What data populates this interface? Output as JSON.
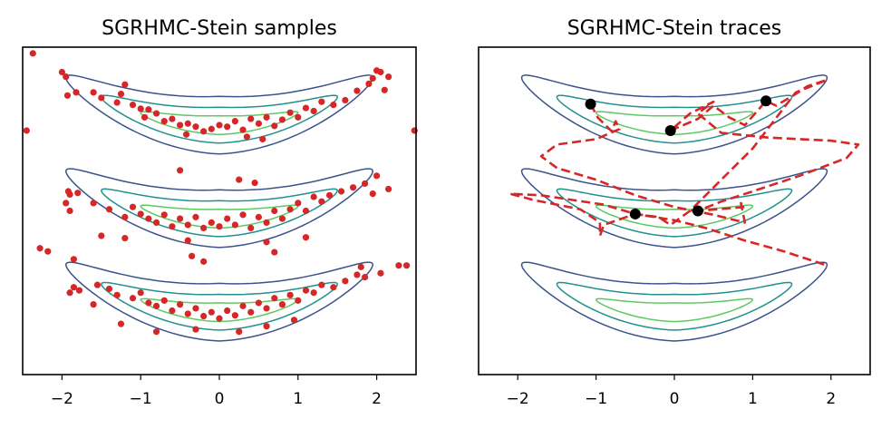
{
  "chart_data": [
    {
      "type": "scatter",
      "title": "SGRHMC-Stein samples",
      "xlabel": "",
      "ylabel": "",
      "xlim": [
        -2.5,
        2.5
      ],
      "ylim": [
        -2.0,
        2.2
      ],
      "xticks": [
        "−2",
        "−1",
        "0",
        "1",
        "2"
      ],
      "xtick_values": [
        -2,
        -1,
        0,
        1,
        2
      ],
      "grid": false,
      "contours": {
        "modes_center_y": [
          1.2,
          0.0,
          -1.2
        ],
        "curvature": 0.16,
        "levels": [
          {
            "name": "outer",
            "color": "#3b528b",
            "half_length": 1.95,
            "half_width": 0.37
          },
          {
            "name": "middle",
            "color": "#21918c",
            "half_length": 1.5,
            "half_width": 0.23
          },
          {
            "name": "inner",
            "color": "#5ec962",
            "half_length": 1.0,
            "half_width": 0.12
          }
        ]
      },
      "series": [
        {
          "name": "samples",
          "color": "#d62728",
          "points": [
            [
              -2.37,
              2.12
            ],
            [
              -2.0,
              1.88
            ],
            [
              -1.95,
              1.82
            ],
            [
              -1.93,
              1.58
            ],
            [
              -1.82,
              1.62
            ],
            [
              -1.6,
              1.62
            ],
            [
              -1.5,
              1.55
            ],
            [
              -1.3,
              1.49
            ],
            [
              -1.25,
              1.6
            ],
            [
              -1.2,
              1.72
            ],
            [
              -1.1,
              1.46
            ],
            [
              -1.0,
              1.41
            ],
            [
              -0.95,
              1.3
            ],
            [
              -0.9,
              1.4
            ],
            [
              -0.8,
              1.35
            ],
            [
              -0.7,
              1.25
            ],
            [
              -0.6,
              1.28
            ],
            [
              -0.5,
              1.2
            ],
            [
              -0.4,
              1.22
            ],
            [
              -0.3,
              1.18
            ],
            [
              -0.2,
              1.12
            ],
            [
              -0.1,
              1.15
            ],
            [
              0.0,
              1.2
            ],
            [
              0.1,
              1.18
            ],
            [
              0.2,
              1.25
            ],
            [
              0.3,
              1.14
            ],
            [
              0.4,
              1.28
            ],
            [
              0.5,
              1.22
            ],
            [
              0.6,
              1.3
            ],
            [
              0.7,
              1.19
            ],
            [
              0.8,
              1.27
            ],
            [
              0.9,
              1.36
            ],
            [
              1.0,
              1.3
            ],
            [
              1.1,
              1.42
            ],
            [
              1.2,
              1.38
            ],
            [
              1.3,
              1.5
            ],
            [
              1.45,
              1.46
            ],
            [
              1.6,
              1.52
            ],
            [
              1.75,
              1.64
            ],
            [
              1.9,
              1.73
            ],
            [
              1.95,
              1.8
            ],
            [
              2.0,
              1.9
            ],
            [
              2.05,
              1.88
            ],
            [
              2.15,
              1.82
            ],
            [
              2.1,
              1.65
            ],
            [
              -0.42,
              1.08
            ],
            [
              0.35,
              1.05
            ],
            [
              0.55,
              1.02
            ],
            [
              -2.45,
              1.13
            ],
            [
              2.48,
              1.13
            ],
            [
              -0.5,
              0.62
            ],
            [
              0.25,
              0.5
            ],
            [
              0.45,
              0.46
            ],
            [
              -1.92,
              0.35
            ],
            [
              -1.9,
              0.31
            ],
            [
              -1.8,
              0.33
            ],
            [
              -1.95,
              0.2
            ],
            [
              -1.9,
              0.1
            ],
            [
              -1.6,
              0.2
            ],
            [
              -1.4,
              0.12
            ],
            [
              -1.2,
              0.02
            ],
            [
              -1.1,
              0.15
            ],
            [
              -1.0,
              0.06
            ],
            [
              -0.9,
              0.0
            ],
            [
              -0.8,
              -0.05
            ],
            [
              -0.7,
              0.05
            ],
            [
              -0.6,
              -0.1
            ],
            [
              -0.5,
              0.0
            ],
            [
              -0.4,
              -0.08
            ],
            [
              -0.3,
              0.02
            ],
            [
              -0.2,
              -0.12
            ],
            [
              -0.1,
              -0.05
            ],
            [
              0.0,
              -0.1
            ],
            [
              0.1,
              0.0
            ],
            [
              0.2,
              -0.08
            ],
            [
              0.3,
              0.05
            ],
            [
              0.4,
              -0.12
            ],
            [
              0.5,
              0.02
            ],
            [
              0.6,
              -0.05
            ],
            [
              0.7,
              0.1
            ],
            [
              0.8,
              0.0
            ],
            [
              0.9,
              0.12
            ],
            [
              1.0,
              0.2
            ],
            [
              1.1,
              0.1
            ],
            [
              1.2,
              0.28
            ],
            [
              1.3,
              0.22
            ],
            [
              1.4,
              0.3
            ],
            [
              1.55,
              0.35
            ],
            [
              1.7,
              0.4
            ],
            [
              1.85,
              0.45
            ],
            [
              2.0,
              0.55
            ],
            [
              1.95,
              0.32
            ],
            [
              2.15,
              0.38
            ],
            [
              -1.5,
              -0.22
            ],
            [
              -1.2,
              -0.25
            ],
            [
              -0.4,
              -0.28
            ],
            [
              0.6,
              -0.3
            ],
            [
              1.1,
              -0.24
            ],
            [
              -2.28,
              -0.38
            ],
            [
              -2.18,
              -0.42
            ],
            [
              -1.85,
              -0.52
            ],
            [
              -0.2,
              -0.55
            ],
            [
              -0.35,
              -0.48
            ],
            [
              0.7,
              -0.43
            ],
            [
              2.28,
              -0.6
            ],
            [
              2.38,
              -0.6
            ],
            [
              -1.85,
              -0.88
            ],
            [
              -1.78,
              -0.92
            ],
            [
              -1.9,
              -0.95
            ],
            [
              -1.55,
              -0.85
            ],
            [
              -1.4,
              -0.9
            ],
            [
              -1.3,
              -0.98
            ],
            [
              -1.1,
              -1.02
            ],
            [
              -1.0,
              -0.95
            ],
            [
              -0.9,
              -1.08
            ],
            [
              -0.8,
              -1.12
            ],
            [
              -0.7,
              -1.05
            ],
            [
              -0.6,
              -1.18
            ],
            [
              -0.5,
              -1.1
            ],
            [
              -0.4,
              -1.22
            ],
            [
              -0.3,
              -1.15
            ],
            [
              -0.2,
              -1.25
            ],
            [
              -0.1,
              -1.2
            ],
            [
              0.0,
              -1.28
            ],
            [
              0.1,
              -1.18
            ],
            [
              0.2,
              -1.24
            ],
            [
              0.3,
              -1.12
            ],
            [
              0.4,
              -1.2
            ],
            [
              0.5,
              -1.08
            ],
            [
              0.6,
              -1.15
            ],
            [
              0.7,
              -1.02
            ],
            [
              0.8,
              -1.1
            ],
            [
              0.9,
              -0.98
            ],
            [
              1.0,
              -1.05
            ],
            [
              1.1,
              -0.92
            ],
            [
              1.2,
              -0.95
            ],
            [
              1.3,
              -0.85
            ],
            [
              1.45,
              -0.88
            ],
            [
              1.6,
              -0.8
            ],
            [
              1.75,
              -0.72
            ],
            [
              1.85,
              -0.75
            ],
            [
              1.8,
              -0.62
            ],
            [
              2.05,
              -0.7
            ],
            [
              -1.6,
              -1.1
            ],
            [
              -1.25,
              -1.35
            ],
            [
              -0.8,
              -1.45
            ],
            [
              -0.3,
              -1.42
            ],
            [
              0.25,
              -1.45
            ],
            [
              0.6,
              -1.38
            ],
            [
              0.95,
              -1.3
            ]
          ]
        }
      ]
    },
    {
      "type": "line",
      "title": "SGRHMC-Stein traces",
      "xlabel": "",
      "ylabel": "",
      "xlim": [
        -2.5,
        2.5
      ],
      "ylim": [
        -2.0,
        2.2
      ],
      "xticks": [
        "−2",
        "−1",
        "0",
        "1",
        "2"
      ],
      "xtick_values": [
        -2,
        -1,
        0,
        1,
        2
      ],
      "grid": false,
      "contours": {
        "modes_center_y": [
          1.2,
          0.0,
          -1.2
        ],
        "curvature": 0.16,
        "levels": [
          {
            "name": "outer",
            "color": "#3b528b",
            "half_length": 1.95,
            "half_width": 0.37
          },
          {
            "name": "middle",
            "color": "#21918c",
            "half_length": 1.5,
            "half_width": 0.23
          },
          {
            "name": "inner",
            "color": "#5ec962",
            "half_length": 1.0,
            "half_width": 0.12
          }
        ]
      },
      "endpoints": {
        "color": "#000000",
        "points": [
          [
            -1.07,
            1.47
          ],
          [
            -0.05,
            1.13
          ],
          [
            1.17,
            1.51
          ],
          [
            -0.5,
            0.06
          ],
          [
            0.3,
            0.1
          ]
        ]
      },
      "series": [
        {
          "name": "trace",
          "color": "#d62728",
          "style": "dashed",
          "points": [
            [
              -1.07,
              1.47
            ],
            [
              -0.98,
              1.3
            ],
            [
              -0.8,
              1.12
            ],
            [
              -0.75,
              1.25
            ],
            [
              -0.7,
              1.15
            ],
            [
              -1.0,
              1.02
            ],
            [
              -1.5,
              0.95
            ],
            [
              -1.7,
              0.8
            ],
            [
              -1.5,
              0.65
            ],
            [
              -1.0,
              0.5
            ],
            [
              -0.5,
              0.3
            ],
            [
              0.0,
              0.15
            ],
            [
              0.5,
              0.05
            ],
            [
              0.9,
              -0.05
            ],
            [
              0.85,
              0.2
            ],
            [
              0.9,
              0.15
            ],
            [
              0.3,
              0.1
            ],
            [
              0.6,
              0.22
            ],
            [
              1.0,
              0.35
            ],
            [
              1.6,
              0.55
            ],
            [
              2.2,
              0.78
            ],
            [
              2.35,
              0.95
            ],
            [
              2.0,
              1.0
            ],
            [
              1.2,
              1.04
            ],
            [
              0.6,
              1.1
            ],
            [
              0.3,
              1.35
            ],
            [
              0.5,
              1.5
            ],
            [
              0.2,
              1.35
            ],
            [
              -0.05,
              1.13
            ],
            [
              0.3,
              1.28
            ],
            [
              0.5,
              1.45
            ],
            [
              0.7,
              1.3
            ],
            [
              0.9,
              1.2
            ],
            [
              1.17,
              1.51
            ],
            [
              1.3,
              1.45
            ],
            [
              1.55,
              1.6
            ],
            [
              1.7,
              1.7
            ],
            [
              1.95,
              1.78
            ],
            [
              1.55,
              1.62
            ],
            [
              1.0,
              0.9
            ],
            [
              0.6,
              0.5
            ],
            [
              0.2,
              0.1
            ],
            [
              -0.05,
              -0.08
            ],
            [
              -0.2,
              0.02
            ],
            [
              -0.5,
              0.06
            ],
            [
              -0.9,
              0.18
            ],
            [
              -1.3,
              0.24
            ],
            [
              -1.7,
              0.3
            ],
            [
              -2.1,
              0.32
            ],
            [
              -1.8,
              0.24
            ],
            [
              -1.2,
              0.12
            ],
            [
              -0.95,
              -0.05
            ],
            [
              -0.95,
              -0.22
            ],
            [
              -0.9,
              -0.08
            ],
            [
              -0.5,
              0.06
            ],
            [
              0.0,
              -0.02
            ],
            [
              0.4,
              -0.12
            ],
            [
              0.9,
              -0.28
            ],
            [
              1.4,
              -0.42
            ],
            [
              1.95,
              -0.6
            ]
          ]
        }
      ]
    }
  ]
}
